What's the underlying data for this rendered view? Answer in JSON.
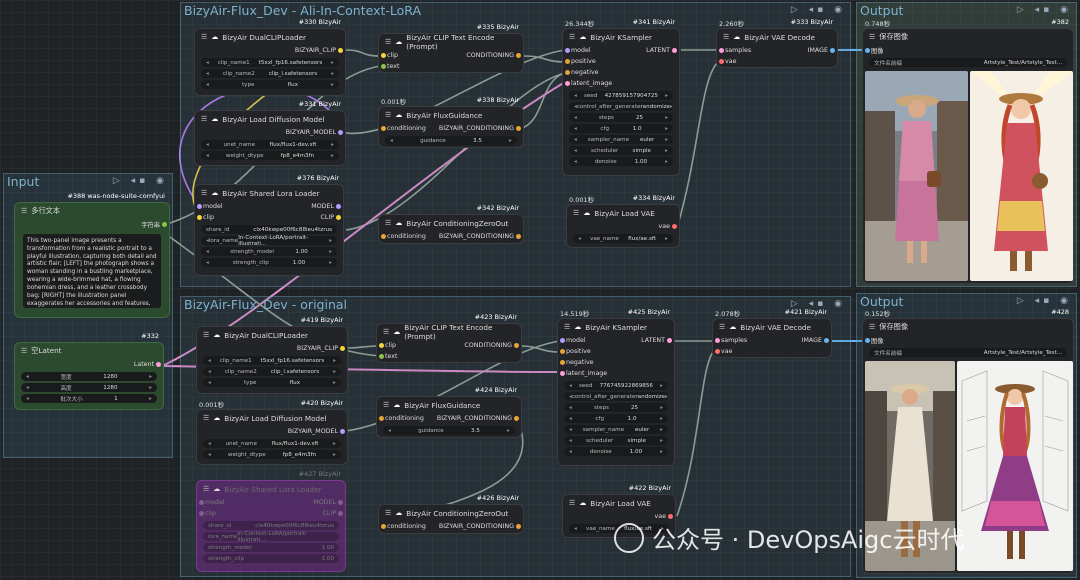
{
  "groups": {
    "incontext": {
      "title": "BizyAir-Flux_Dev - Ali-In-Context-LoRA"
    },
    "original": {
      "title": "BizyAir-Flux_Dev - original"
    },
    "input": {
      "title": "Input"
    },
    "output1": {
      "title": "Output"
    },
    "output2": {
      "title": "Output"
    },
    "controls": "▷ ◂▪ ◉"
  },
  "nodes": {
    "n330": {
      "badge": "#330 BizyAir",
      "title": "BizyAir DualCLIPLoader",
      "out": "BIZYAIR_CLIP",
      "w": [
        [
          "clip_name1",
          "t5xxl_fp16.safetensors"
        ],
        [
          "clip_name2",
          "clip_l.safetensors"
        ],
        [
          "type",
          "flux"
        ]
      ]
    },
    "n331": {
      "badge": "#331 BizyAir",
      "title": "BizyAir Load Diffusion Model",
      "out": "BIZYAIR_MODEL",
      "w": [
        [
          "unet_name",
          "flux/flux1-dev.sft"
        ],
        [
          "weight_dtype",
          "fp8_e4m3fn"
        ]
      ]
    },
    "n376": {
      "badge": "#376 BizyAir",
      "title": "BizyAir Shared Lora Loader",
      "in1": "model",
      "in2": "clip",
      "out1": "MODEL",
      "out2": "CLIP",
      "w": [
        [
          "share_id",
          "clx40kwpe00f6c88ieu4tzrus"
        ],
        [
          "lora_name",
          "In-Context-LoRA/portrait-illustrati..."
        ],
        [
          "strength_model",
          "1.00"
        ],
        [
          "strength_clip",
          "1.00"
        ]
      ]
    },
    "n335": {
      "badge": "#335 BizyAir",
      "title": "BizyAir CLIP Text Encode (Prompt)",
      "in1": "clip",
      "in2": "text",
      "out": "CONDITIONING"
    },
    "n338": {
      "badge": "#338 BizyAir",
      "timing": "0.001秒",
      "title": "BizyAir FluxGuidance",
      "in1": "conditioning",
      "out": "BIZYAIR_CONDITIONING",
      "w": [
        [
          "guidance",
          "3.5"
        ]
      ]
    },
    "n342": {
      "badge": "#342 BizyAir",
      "title": "BizyAir ConditioningZeroOut",
      "in1": "conditioning",
      "out": "BIZYAIR_CONDITIONING"
    },
    "n341": {
      "badge": "#341 BizyAir",
      "timing": "26.344秒",
      "title": "BizyAir KSampler",
      "ins": [
        "model",
        "positive",
        "negative",
        "latent_image"
      ],
      "out": "LATENT",
      "w": [
        [
          "seed",
          "427859157904725"
        ],
        [
          "control_after_generate",
          "randomize"
        ],
        [
          "steps",
          "25"
        ],
        [
          "cfg",
          "1.0"
        ],
        [
          "sampler_name",
          "euler"
        ],
        [
          "scheduler",
          "simple"
        ],
        [
          "denoise",
          "1.00"
        ]
      ]
    },
    "n334": {
      "badge": "#334 BizyAir",
      "timing": "0.001秒",
      "title": "BizyAir Load VAE",
      "out": "vae",
      "w": [
        [
          "vae_name",
          "flux/ae.sft"
        ]
      ]
    },
    "n333": {
      "badge": "#333 BizyAir",
      "timing": "2.260秒",
      "title": "BizyAir VAE Decode",
      "in1": "samples",
      "in2": "vae",
      "out": "IMAGE"
    },
    "n382": {
      "badge": "#382",
      "timing": "0.748秒",
      "title": "保存图像",
      "in1": "图像",
      "w": [
        [
          "文件名前缀",
          "Artstyle_Test/Artstyle_Test..."
        ]
      ]
    },
    "n388": {
      "badge": "#388 was-node-suite-comfyui",
      "title": "多行文本",
      "out": "字符串",
      "text": "This two-panel image presents a transformation from a realistic portrait to a playful illustration, capturing both detail and artistic flair; [LEFT] the photograph shows a woman standing in a bustling marketplace, wearing a wide-brimmed hat, a flowing bohemian dress, and a leather crossbody bag; [RIGHT] the illustration panel exaggerates her accessories and features, with the bohemian dress"
    },
    "n332": {
      "badge": "#332",
      "title": "空Latent",
      "out": "Latent",
      "w": [
        [
          "宽度",
          "1280"
        ],
        [
          "高度",
          "1280"
        ],
        [
          "批次大小",
          "1"
        ]
      ]
    },
    "n419": {
      "badge": "#419 BizyAir",
      "title": "BizyAir DualCLIPLoader",
      "out": "BIZYAIR_CLIP",
      "w": [
        [
          "clip_name1",
          "t5xxl_fp16.safetensors"
        ],
        [
          "clip_name2",
          "clip_l.safetensors"
        ],
        [
          "type",
          "flux"
        ]
      ]
    },
    "n420": {
      "badge": "#420 BizyAir",
      "timing": "0.001秒",
      "title": "BizyAir Load Diffusion Model",
      "out": "BIZYAIR_MODEL",
      "w": [
        [
          "unet_name",
          "flux/flux1-dev.sft"
        ],
        [
          "weight_dtype",
          "fp8_e4m3fn"
        ]
      ]
    },
    "n427": {
      "badge": "#427 BizyAir",
      "title": "BizyAir Shared Lora Loader",
      "in1": "model",
      "in2": "clip",
      "out1": "MODEL",
      "out2": "CLIP",
      "w": [
        [
          "share_id",
          "clx40kwpe00f6c88ieu4tzrus"
        ],
        [
          "lora_name",
          "In-Context-LoRA/portrait-illustrati..."
        ],
        [
          "strength_model",
          "1.00"
        ],
        [
          "strength_clip",
          "1.00"
        ]
      ]
    },
    "n423": {
      "badge": "#423 BizyAir",
      "title": "BizyAir CLIP Text Encode (Prompt)",
      "in1": "clip",
      "in2": "text",
      "out": "CONDITIONING"
    },
    "n424": {
      "badge": "#424 BizyAir",
      "title": "BizyAir FluxGuidance",
      "in1": "conditioning",
      "out": "BIZYAIR_CONDITIONING",
      "w": [
        [
          "guidance",
          "3.5"
        ]
      ]
    },
    "n426": {
      "badge": "#426 BizyAir",
      "title": "BizyAir ConditioningZeroOut",
      "in1": "conditioning",
      "out": "BIZYAIR_CONDITIONING"
    },
    "n425": {
      "badge": "#425 BizyAir",
      "timing": "14.519秒",
      "title": "BizyAir KSampler",
      "ins": [
        "model",
        "positive",
        "negative",
        "latent_image"
      ],
      "out": "LATENT",
      "w": [
        [
          "seed",
          "776745922869856"
        ],
        [
          "control_after_generate",
          "randomize"
        ],
        [
          "steps",
          "25"
        ],
        [
          "cfg",
          "1.0"
        ],
        [
          "sampler_name",
          "euler"
        ],
        [
          "scheduler",
          "simple"
        ],
        [
          "denoise",
          "1.00"
        ]
      ]
    },
    "n422": {
      "badge": "#422 BizyAir",
      "title": "BizyAir Load VAE",
      "out": "vae",
      "w": [
        [
          "vae_name",
          "flux/ae.sft"
        ]
      ]
    },
    "n421": {
      "badge": "#421 BizyAir",
      "timing": "2.078秒",
      "title": "BizyAir VAE Decode",
      "in1": "samples",
      "in2": "vae",
      "out": "IMAGE"
    },
    "n428": {
      "badge": "#428",
      "timing": "0.152秒",
      "title": "保存图像",
      "in1": "图像",
      "w": [
        [
          "文件名前缀",
          "Artstyle_Test/Artstyle_Test..."
        ]
      ]
    }
  },
  "watermark": "公众号 · DevOpsAigc云时代",
  "colors": {
    "clip": "#f5d43c",
    "model": "#b39dff",
    "conditioning": "#e8a33a",
    "latent": "#ff9ed8",
    "vae": "#ff6b6b",
    "image": "#64b5f6",
    "string": "#8bc34a",
    "bypass": "#6b2a7e"
  }
}
